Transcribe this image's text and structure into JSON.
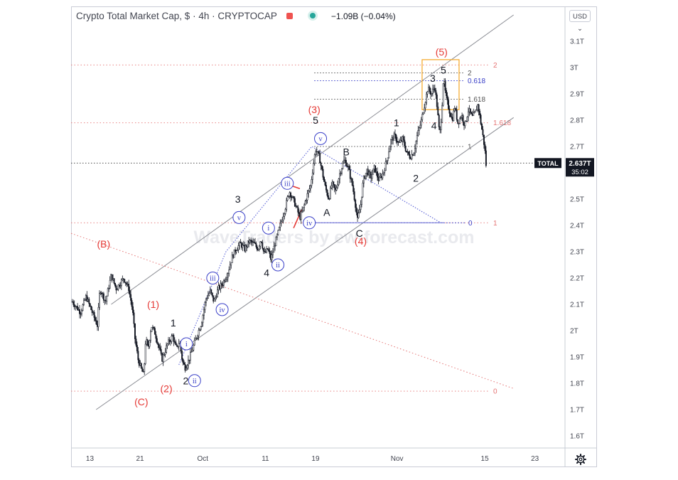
{
  "header": {
    "symbol_line": "Crypto Total Market Cap, $ · 4h · CRYPTOCAP",
    "change": "−1.09B (−0.04%)",
    "currency_button": "USD",
    "currency_chevron": "⌄"
  },
  "watermark": "WaveTraders by ew-forecast.com",
  "price_tag": {
    "label": "TOTAL",
    "value": "2.637T",
    "countdown": "35:02"
  },
  "colors": {
    "up_candle": "#131722",
    "channel": "#8a8c93",
    "red": "#e53935",
    "blue": "#3a40c8",
    "box": "#f5a623",
    "grid_red": "#e57373",
    "grid_black": "#555555"
  },
  "icons": {
    "flag": "flag-icon",
    "live": "market-open-dot-icon",
    "settings": "gear-icon"
  },
  "chart_data": {
    "type": "candlestick",
    "title": "Crypto Total Market Cap, $ · 4h · CRYPTOCAP",
    "ylim": [
      1.55,
      3.15
    ],
    "x_range_days": [
      10,
      84
    ],
    "y_ticks": [
      "3.1T",
      "3T",
      "2.9T",
      "2.8T",
      "2.7T",
      "2.6T",
      "2.5T",
      "2.4T",
      "2.3T",
      "2.2T",
      "2.1T",
      "2T",
      "1.9T",
      "1.8T",
      "1.7T",
      "1.6T"
    ],
    "y_tick_values": [
      3.1,
      3.0,
      2.9,
      2.8,
      2.7,
      2.6,
      2.5,
      2.4,
      2.3,
      2.2,
      2.1,
      2.0,
      1.9,
      1.8,
      1.7,
      1.6
    ],
    "x_ticks": [
      "13",
      "21",
      "Oct",
      "11",
      "19",
      "Nov",
      "15",
      "23"
    ],
    "x_tick_days": [
      13,
      21,
      31,
      41,
      49,
      62,
      76,
      84
    ],
    "price_path": [
      [
        10.2,
        2.11
      ],
      [
        11.5,
        2.07
      ],
      [
        12.4,
        2.13
      ],
      [
        13.2,
        2.08
      ],
      [
        14.2,
        2.02
      ],
      [
        14.6,
        2.16
      ],
      [
        15.5,
        2.11
      ],
      [
        16.4,
        2.21
      ],
      [
        17.2,
        2.16
      ],
      [
        18.4,
        2.2
      ],
      [
        19.2,
        2.16
      ],
      [
        19.8,
        2.08
      ],
      [
        20.2,
        1.97
      ],
      [
        20.7,
        1.89
      ],
      [
        21.1,
        1.86
      ],
      [
        21.6,
        1.83
      ],
      [
        21.9,
        1.97
      ],
      [
        22.3,
        1.93
      ],
      [
        22.8,
        2.02
      ],
      [
        23.4,
        1.99
      ],
      [
        24.1,
        1.93
      ],
      [
        24.5,
        1.89
      ],
      [
        25.4,
        1.95
      ],
      [
        26.2,
        1.98
      ],
      [
        26.8,
        1.93
      ],
      [
        27.3,
        1.96
      ],
      [
        27.8,
        1.88
      ],
      [
        28.2,
        1.86
      ],
      [
        28.8,
        1.89
      ],
      [
        29.5,
        1.94
      ],
      [
        30.2,
        1.99
      ],
      [
        30.8,
        2.03
      ],
      [
        31.5,
        2.12
      ],
      [
        32.2,
        2.15
      ],
      [
        32.8,
        2.11
      ],
      [
        33.5,
        2.16
      ],
      [
        34.2,
        2.18
      ],
      [
        35.0,
        2.22
      ],
      [
        35.7,
        2.28
      ],
      [
        36.3,
        2.31
      ],
      [
        37.0,
        2.33
      ],
      [
        37.7,
        2.31
      ],
      [
        38.4,
        2.34
      ],
      [
        39.2,
        2.33
      ],
      [
        39.8,
        2.31
      ],
      [
        40.3,
        2.35
      ],
      [
        40.8,
        2.29
      ],
      [
        41.4,
        2.31
      ],
      [
        41.9,
        2.27
      ],
      [
        42.4,
        2.32
      ],
      [
        43.0,
        2.37
      ],
      [
        43.6,
        2.42
      ],
      [
        44.2,
        2.47
      ],
      [
        44.8,
        2.53
      ],
      [
        45.4,
        2.5
      ],
      [
        45.9,
        2.47
      ],
      [
        46.5,
        2.43
      ],
      [
        47.0,
        2.46
      ],
      [
        47.6,
        2.51
      ],
      [
        48.2,
        2.55
      ],
      [
        48.6,
        2.62
      ],
      [
        49.0,
        2.69
      ],
      [
        49.6,
        2.66
      ],
      [
        50.1,
        2.6
      ],
      [
        50.5,
        2.55
      ],
      [
        51.1,
        2.5
      ],
      [
        51.6,
        2.56
      ],
      [
        52.2,
        2.53
      ],
      [
        52.9,
        2.6
      ],
      [
        53.6,
        2.65
      ],
      [
        54.2,
        2.62
      ],
      [
        54.9,
        2.55
      ],
      [
        55.3,
        2.49
      ],
      [
        55.7,
        2.42
      ],
      [
        56.2,
        2.48
      ],
      [
        56.6,
        2.57
      ],
      [
        57.2,
        2.61
      ],
      [
        57.8,
        2.58
      ],
      [
        58.4,
        2.62
      ],
      [
        59.1,
        2.57
      ],
      [
        59.8,
        2.6
      ],
      [
        60.4,
        2.65
      ],
      [
        61.0,
        2.72
      ],
      [
        61.6,
        2.74
      ],
      [
        62.3,
        2.71
      ],
      [
        62.9,
        2.73
      ],
      [
        63.5,
        2.68
      ],
      [
        64.1,
        2.66
      ],
      [
        64.7,
        2.68
      ],
      [
        65.2,
        2.74
      ],
      [
        65.8,
        2.79
      ],
      [
        66.4,
        2.86
      ],
      [
        66.9,
        2.92
      ],
      [
        67.5,
        2.9
      ],
      [
        68.0,
        2.93
      ],
      [
        68.4,
        2.85
      ],
      [
        68.8,
        2.74
      ],
      [
        69.1,
        2.82
      ],
      [
        69.4,
        2.96
      ],
      [
        69.8,
        2.89
      ],
      [
        70.3,
        2.84
      ],
      [
        70.8,
        2.8
      ],
      [
        71.2,
        2.85
      ],
      [
        71.7,
        2.79
      ],
      [
        72.3,
        2.82
      ],
      [
        72.8,
        2.78
      ],
      [
        73.4,
        2.84
      ],
      [
        74.0,
        2.81
      ],
      [
        74.5,
        2.83
      ],
      [
        74.9,
        2.86
      ],
      [
        75.3,
        2.8
      ],
      [
        75.7,
        2.74
      ],
      [
        76.0,
        2.69
      ],
      [
        76.2,
        2.63
      ]
    ],
    "channel_upper": [
      [
        16.4,
        2.1
      ],
      [
        80.6,
        3.2
      ]
    ],
    "channel_lower": [
      [
        14.0,
        1.7
      ],
      [
        80.6,
        2.81
      ]
    ],
    "red_dotted_trend": [
      [
        10.0,
        2.37
      ],
      [
        80.6,
        1.78
      ]
    ],
    "blue_dotted_path": [
      [
        27.2,
        1.87
      ],
      [
        34.7,
        2.3
      ],
      [
        48.4,
        2.7
      ],
      [
        69.0,
        2.41
      ]
    ],
    "blue_level_line": [
      [
        47.2,
        2.41
      ],
      [
        69.5,
        2.41
      ]
    ],
    "red_segments": [
      [
        [
          44.0,
          2.56
        ],
        [
          46.5,
          2.54
        ]
      ],
      [
        [
          45.5,
          2.39
        ],
        [
          46.8,
          2.46
        ]
      ]
    ],
    "fib_levels": [
      {
        "label": "2",
        "y": 3.01,
        "color": "red"
      },
      {
        "label": "1.618",
        "y": 2.79,
        "color": "red"
      },
      {
        "label": "1",
        "y": 2.41,
        "color": "red"
      },
      {
        "label": "0",
        "y": 1.77,
        "color": "red"
      },
      {
        "label": "2",
        "y": 2.98,
        "color": "black"
      },
      {
        "label": "0.618",
        "y": 2.95,
        "color": "blue"
      },
      {
        "label": "1.618",
        "y": 2.88,
        "color": "black"
      },
      {
        "label": "1",
        "y": 2.7,
        "color": "black"
      },
      {
        "label": "0",
        "y": 2.41,
        "color": "blue"
      }
    ],
    "current_price": 2.637,
    "target_box": {
      "x": [
        66.0,
        71.9
      ],
      "y": [
        2.84,
        3.03
      ]
    },
    "wave_labels": [
      {
        "t": "(B)",
        "x": 15.2,
        "y": 2.33,
        "style": "red"
      },
      {
        "t": "(1)",
        "x": 23.1,
        "y": 2.1,
        "style": "red"
      },
      {
        "t": "(C)",
        "x": 21.2,
        "y": 1.73,
        "style": "red"
      },
      {
        "t": "(2)",
        "x": 25.2,
        "y": 1.78,
        "style": "red"
      },
      {
        "t": "(3)",
        "x": 48.8,
        "y": 2.84,
        "style": "red"
      },
      {
        "t": "(4)",
        "x": 56.2,
        "y": 2.34,
        "style": "red"
      },
      {
        "t": "(5)",
        "x": 69.1,
        "y": 3.06,
        "style": "red"
      },
      {
        "t": "1",
        "x": 26.3,
        "y": 2.03,
        "style": "black"
      },
      {
        "t": "2",
        "x": 28.3,
        "y": 1.81,
        "style": "black"
      },
      {
        "t": "3",
        "x": 36.6,
        "y": 2.5,
        "style": "black"
      },
      {
        "t": "4",
        "x": 41.2,
        "y": 2.22,
        "style": "black"
      },
      {
        "t": "5",
        "x": 49.0,
        "y": 2.8,
        "style": "black"
      },
      {
        "t": "A",
        "x": 50.8,
        "y": 2.45,
        "style": "black"
      },
      {
        "t": "B",
        "x": 53.9,
        "y": 2.68,
        "style": "black"
      },
      {
        "t": "C",
        "x": 56.0,
        "y": 2.37,
        "style": "black"
      },
      {
        "t": "1",
        "x": 61.9,
        "y": 2.79,
        "style": "black"
      },
      {
        "t": "2",
        "x": 65.0,
        "y": 2.58,
        "style": "black"
      },
      {
        "t": "3",
        "x": 67.7,
        "y": 2.96,
        "style": "black"
      },
      {
        "t": "4",
        "x": 67.9,
        "y": 2.78,
        "style": "black"
      },
      {
        "t": "5",
        "x": 69.4,
        "y": 2.99,
        "style": "black"
      },
      {
        "t": "i",
        "x": 28.4,
        "y": 1.95,
        "style": "circle"
      },
      {
        "t": "ii",
        "x": 29.7,
        "y": 1.81,
        "style": "circle"
      },
      {
        "t": "iii",
        "x": 32.6,
        "y": 2.2,
        "style": "circle"
      },
      {
        "t": "iv",
        "x": 34.1,
        "y": 2.08,
        "style": "circle"
      },
      {
        "t": "v",
        "x": 36.8,
        "y": 2.43,
        "style": "circle"
      },
      {
        "t": "i",
        "x": 41.5,
        "y": 2.39,
        "style": "circle"
      },
      {
        "t": "ii",
        "x": 43.0,
        "y": 2.25,
        "style": "circle"
      },
      {
        "t": "iii",
        "x": 44.5,
        "y": 2.56,
        "style": "circle"
      },
      {
        "t": "iv",
        "x": 48.0,
        "y": 2.41,
        "style": "circle"
      },
      {
        "t": "v",
        "x": 49.8,
        "y": 2.73,
        "style": "circle"
      }
    ]
  }
}
